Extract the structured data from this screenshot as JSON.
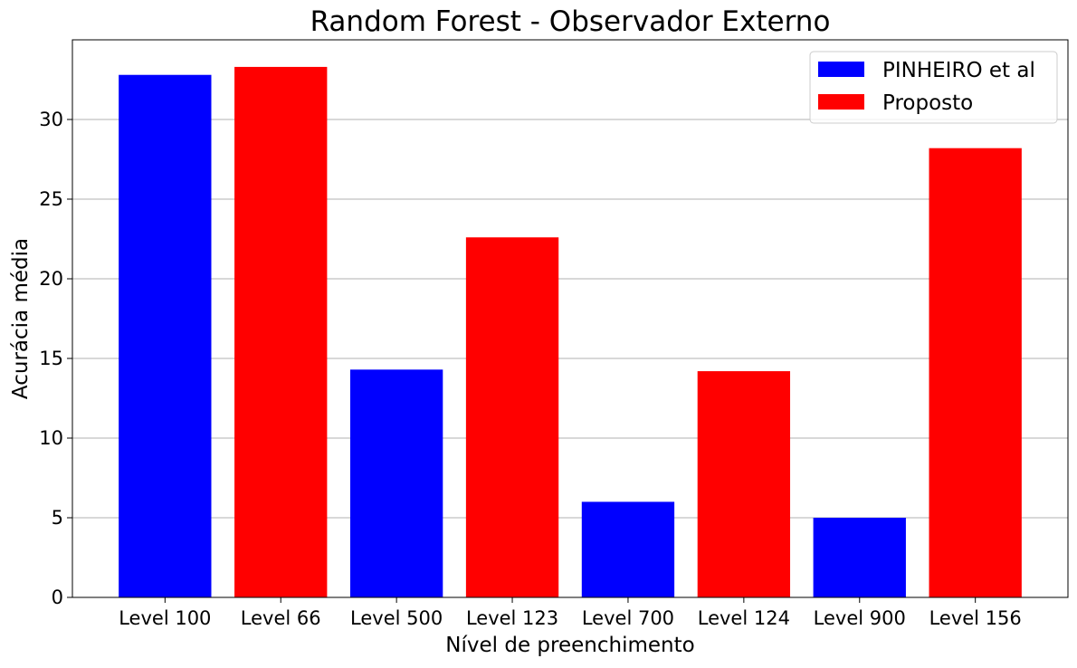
{
  "chart_data": {
    "type": "bar",
    "title": "Random Forest - Observador Externo",
    "xlabel": "Nível de preenchimento",
    "ylabel": "Acurácia média",
    "categories": [
      "Level 100",
      "Level 66",
      "Level 500",
      "Level 123",
      "Level 700",
      "Level 124",
      "Level 900",
      "Level 156"
    ],
    "values": [
      32.8,
      33.3,
      14.3,
      22.6,
      6.0,
      14.2,
      5.0,
      28.2
    ],
    "bar_series": [
      0,
      1,
      0,
      1,
      0,
      1,
      0,
      1
    ],
    "series": [
      {
        "name": "PINHEIRO et al",
        "color": "#0000ff"
      },
      {
        "name": "Proposto",
        "color": "#ff0000"
      }
    ],
    "ylim": [
      0,
      35
    ],
    "yticks": [
      0,
      5,
      10,
      15,
      20,
      25,
      30
    ],
    "grid": "y",
    "legend_position": "top-right"
  }
}
